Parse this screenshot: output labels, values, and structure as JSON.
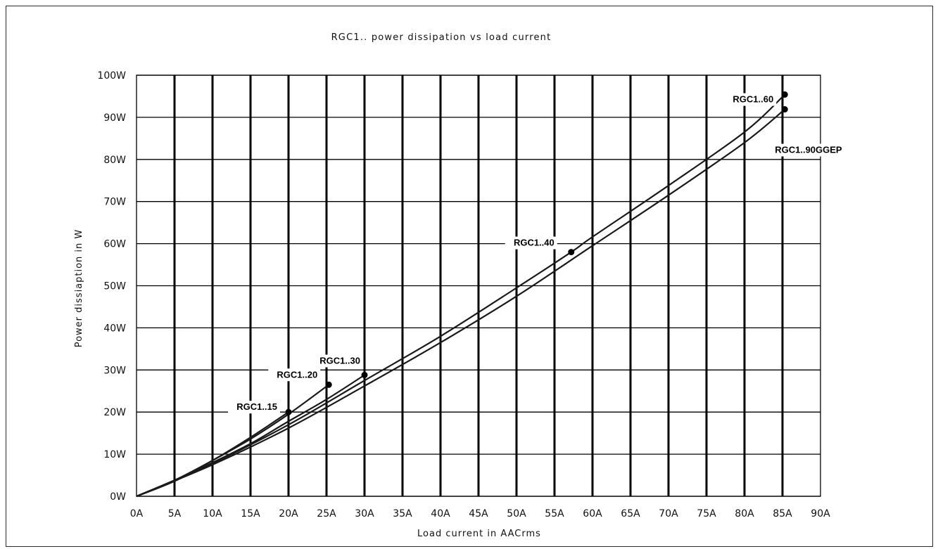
{
  "chart_data": {
    "type": "line",
    "title": "RGC1.. power dissipation vs load current",
    "xlabel": "Load current in AACrms",
    "ylabel": "Power dissiaption in W",
    "xlim": [
      0,
      90
    ],
    "ylim": [
      0,
      100
    ],
    "x_ticks": [
      0,
      5,
      10,
      15,
      20,
      25,
      30,
      35,
      40,
      45,
      50,
      55,
      60,
      65,
      70,
      75,
      80,
      85,
      90
    ],
    "x_tick_labels": [
      "0A",
      "5A",
      "10A",
      "15A",
      "20A",
      "25A",
      "30A",
      "35A",
      "40A",
      "45A",
      "50A",
      "55A",
      "60A",
      "65A",
      "70A",
      "75A",
      "80A",
      "85A",
      "90A"
    ],
    "y_ticks": [
      0,
      10,
      20,
      30,
      40,
      50,
      60,
      70,
      80,
      90,
      100
    ],
    "y_tick_labels": [
      "0W",
      "10W",
      "20W",
      "30W",
      "40W",
      "50W",
      "60W",
      "70W",
      "80W",
      "90W",
      "100W"
    ],
    "grid": true,
    "series": [
      {
        "name": "RGC1..15",
        "x": [
          0,
          5,
          10,
          15,
          20
        ],
        "y": [
          0,
          3.6,
          8.5,
          14.0,
          20.0
        ],
        "end_marker": {
          "x": 20,
          "y": 20.0
        }
      },
      {
        "name": "RGC1..20",
        "x": [
          0,
          5,
          10,
          15,
          20,
          25.3
        ],
        "y": [
          0,
          3.8,
          8.5,
          13.6,
          19.5,
          26.5
        ],
        "end_marker": {
          "x": 25.3,
          "y": 26.5
        }
      },
      {
        "name": "RGC1..30",
        "x": [
          0,
          5,
          10,
          15,
          20,
          25,
          30
        ],
        "y": [
          0,
          3.6,
          8.0,
          12.5,
          17.8,
          23.0,
          28.8
        ],
        "end_marker": {
          "x": 30,
          "y": 28.8
        }
      },
      {
        "name": "RGC1..60",
        "x": [
          0,
          10,
          20,
          30,
          40,
          50,
          57.2,
          60,
          70,
          80,
          85.3
        ],
        "y": [
          0,
          7.8,
          17.0,
          27.5,
          38.0,
          49.5,
          58.0,
          61.6,
          73.8,
          86.5,
          95.4
        ],
        "end_marker": {
          "x": 85.3,
          "y": 95.4
        }
      },
      {
        "name": "RGC1..90GGEP",
        "x": [
          0,
          10,
          20,
          30,
          40,
          50,
          60,
          70,
          80,
          85.3
        ],
        "y": [
          0,
          7.5,
          16.2,
          26.2,
          36.5,
          47.5,
          59.5,
          71.5,
          84.0,
          91.9
        ],
        "end_marker": {
          "x": 85.3,
          "y": 91.9
        }
      }
    ],
    "annotations": [
      {
        "text": "RGC1..15",
        "marker_x": 20,
        "marker_y": 20.0
      },
      {
        "text": "RGC1..20",
        "marker_x": 25.3,
        "marker_y": 26.5
      },
      {
        "text": "RGC1..30",
        "marker_x": 30,
        "marker_y": 28.8
      },
      {
        "text": "RGC1..40",
        "marker_x": 57.2,
        "marker_y": 58.0
      },
      {
        "text": "RGC1..60",
        "marker_x": 85.3,
        "marker_y": 95.4
      },
      {
        "text": "RGC1..90GGEP",
        "marker_x": 85.3,
        "marker_y": 91.9
      }
    ]
  }
}
